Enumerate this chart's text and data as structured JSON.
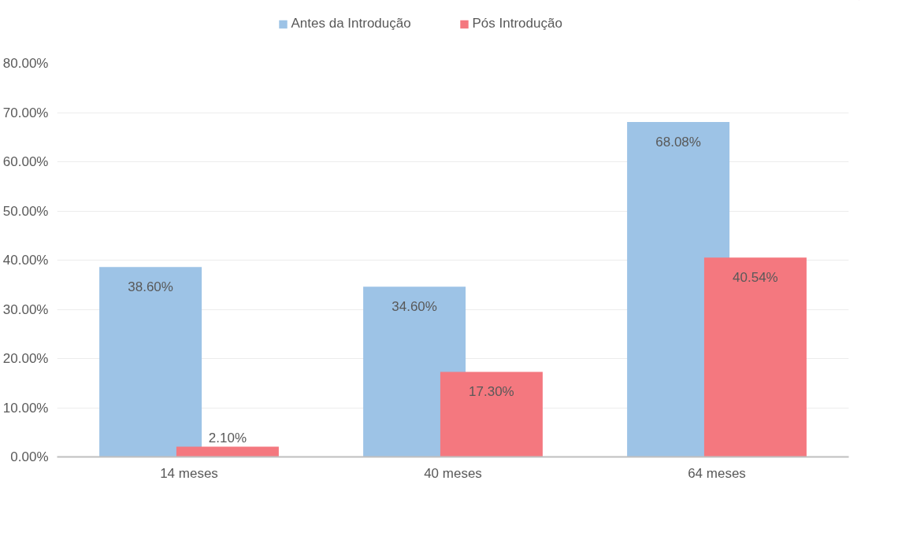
{
  "chart_data": {
    "type": "bar",
    "categories": [
      "14 meses",
      "40 meses",
      "64 meses"
    ],
    "series": [
      {
        "name": "Antes da Introdução",
        "color": "#9dc3e6",
        "values": [
          38.6,
          34.6,
          68.08
        ],
        "value_labels": [
          "38.60%",
          "34.60%",
          "68.08%"
        ]
      },
      {
        "name": "Pós Introdução",
        "color": "#f4787f",
        "values": [
          2.1,
          17.3,
          40.54
        ],
        "value_labels": [
          "2.10%",
          "17.30%",
          "40.54%"
        ]
      }
    ],
    "ylim": [
      0,
      80
    ],
    "yticks": [
      {
        "value": 0,
        "label": "0.00%"
      },
      {
        "value": 10,
        "label": "10.00%"
      },
      {
        "value": 20,
        "label": "20.00%"
      },
      {
        "value": 30,
        "label": "30.00%"
      },
      {
        "value": 40,
        "label": "40.00%"
      },
      {
        "value": 50,
        "label": "50.00%"
      },
      {
        "value": 60,
        "label": "60.00%"
      },
      {
        "value": 70,
        "label": "70.00%"
      },
      {
        "value": 80,
        "label": "80.00%"
      }
    ],
    "grid": "y",
    "legend": "top"
  }
}
